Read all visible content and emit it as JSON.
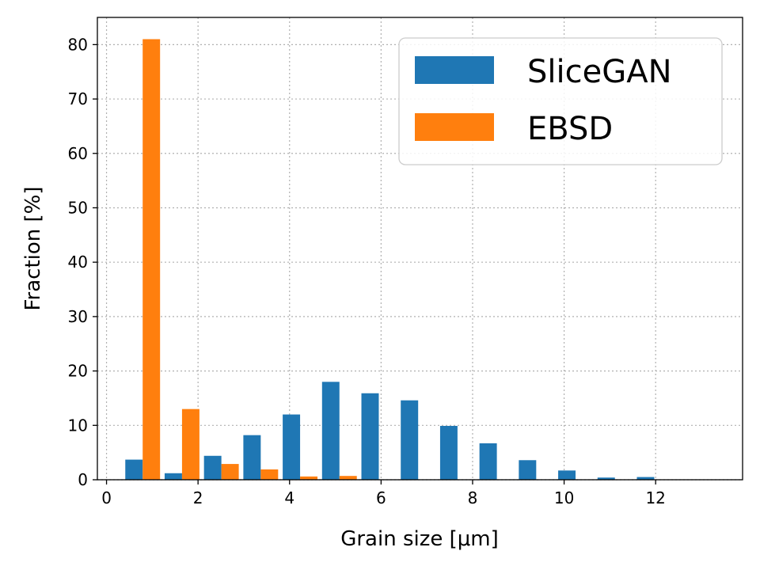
{
  "chart_data": {
    "type": "bar",
    "xlabel": "Grain size [μm]",
    "ylabel": "Fraction [%]",
    "xlim": [
      -0.2,
      13.9
    ],
    "ylim": [
      0,
      85
    ],
    "xticks": [
      0,
      2,
      4,
      6,
      8,
      10,
      12
    ],
    "yticks": [
      0,
      10,
      20,
      30,
      40,
      50,
      60,
      70,
      80
    ],
    "grid": true,
    "legend_position": "top-right",
    "bar_width": 0.38,
    "series": [
      {
        "name": "SliceGAN",
        "color": "#1f77b4",
        "x": [
          0.6,
          1.46,
          2.32,
          3.18,
          4.04,
          4.9,
          5.76,
          6.62,
          7.48,
          8.34,
          9.2,
          10.06,
          10.92,
          11.78
        ],
        "values": [
          3.7,
          1.2,
          4.4,
          8.2,
          12.0,
          18.0,
          15.9,
          14.6,
          9.9,
          6.7,
          3.6,
          1.7,
          0.4,
          0.5
        ]
      },
      {
        "name": "EBSD",
        "color": "#ff7f0e",
        "x": [
          0.98,
          1.84,
          2.7,
          3.56,
          4.42,
          5.28
        ],
        "values": [
          81.0,
          13.0,
          2.9,
          1.9,
          0.6,
          0.7
        ]
      }
    ]
  }
}
